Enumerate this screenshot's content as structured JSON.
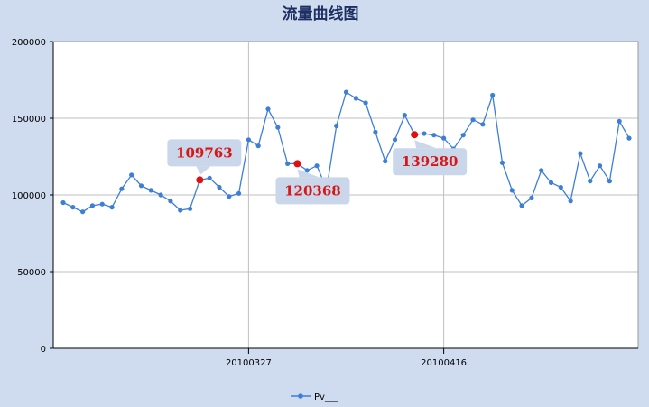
{
  "chart_data": {
    "type": "line",
    "title": "流量曲线图",
    "xlabel": "",
    "ylabel": "",
    "ylim": [
      0,
      200000
    ],
    "yticks": [
      0,
      50000,
      100000,
      150000,
      200000
    ],
    "ytick_labels": [
      "0",
      "50000",
      "100000",
      "150000",
      "200000"
    ],
    "xtick_labels": [
      {
        "label": "20100327",
        "index": 19
      },
      {
        "label": "20100416",
        "index": 39
      }
    ],
    "grid": true,
    "legend_position": "bottom-center",
    "series": [
      {
        "name": "Pv___",
        "color": "#3d7fd6",
        "values": [
          95000,
          92000,
          89000,
          93000,
          94000,
          92000,
          104000,
          113000,
          106000,
          103000,
          100000,
          96000,
          90000,
          91000,
          109763,
          111000,
          105000,
          99000,
          101000,
          136000,
          132000,
          156000,
          144000,
          120368,
          120368,
          116000,
          119000,
          104000,
          145000,
          167000,
          163000,
          160000,
          141000,
          122000,
          136000,
          152000,
          139280,
          140000,
          139000,
          137000,
          130000,
          139000,
          149000,
          146000,
          165000,
          121000,
          103000,
          93000,
          98000,
          116000,
          108000,
          105000,
          96000,
          127000,
          109000,
          119000,
          109000,
          148000,
          137000
        ]
      }
    ],
    "highlights": [
      {
        "index": 14,
        "value": 109763,
        "label": "109763",
        "color": "#e01010"
      },
      {
        "index": 24,
        "value": 120368,
        "label": "120368",
        "color": "#e01010"
      },
      {
        "index": 36,
        "value": 139280,
        "label": "139280",
        "color": "#e01010"
      }
    ]
  }
}
